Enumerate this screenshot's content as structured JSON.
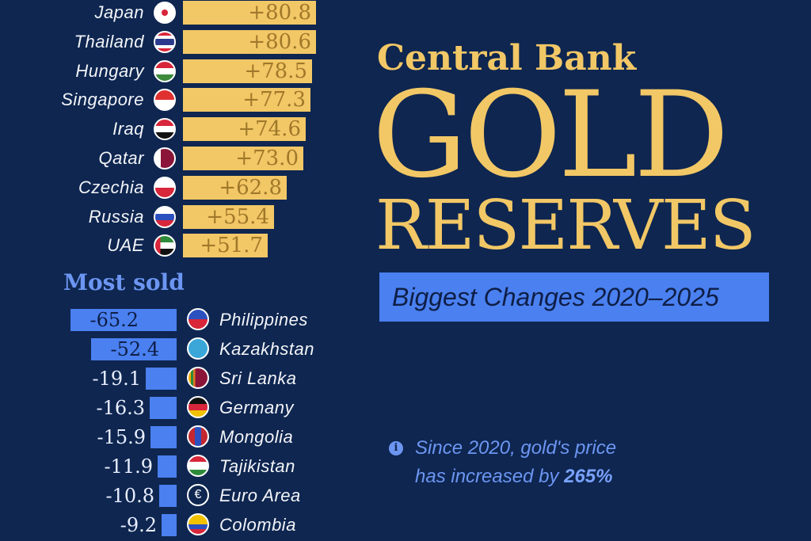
{
  "title": {
    "line1": "Central Bank",
    "line2": "GOLD",
    "line3": "RESERVES",
    "subtitle": "Biggest Changes 2020–2025"
  },
  "note": {
    "line1": "Since 2020, gold's price",
    "line2_prefix": "has increased by ",
    "line2_value": "265%"
  },
  "sold_section_title": "Most sold",
  "colors": {
    "background": "#0e2650",
    "gold": "#f2c766",
    "gold_text": "#a0782a",
    "blue": "#4a80f0",
    "blue_text": "#6d96f2"
  },
  "chart_data": [
    {
      "type": "bar",
      "orientation": "horizontal",
      "categories": [
        "Japan",
        "Thailand",
        "Hungary",
        "Singapore",
        "Iraq",
        "Qatar",
        "Czechia",
        "Russia",
        "UAE"
      ],
      "values": [
        80.8,
        80.6,
        78.5,
        77.3,
        74.6,
        73.0,
        62.8,
        55.4,
        51.7
      ],
      "labels": [
        "+80.8",
        "+80.6",
        "+78.5",
        "+77.3",
        "+74.6",
        "+73.0",
        "+62.8",
        "+55.4",
        "+51.7"
      ],
      "flag_icons": [
        "japan-flag-icon",
        "thailand-flag-icon",
        "hungary-flag-icon",
        "singapore-flag-icon",
        "iraq-flag-icon",
        "qatar-flag-icon",
        "czechia-flag-icon",
        "russia-flag-icon",
        "uae-flag-icon"
      ],
      "color": "#f2c766"
    },
    {
      "type": "bar",
      "orientation": "horizontal",
      "title": "Most sold",
      "categories": [
        "Philippines",
        "Kazakhstan",
        "Sri Lanka",
        "Germany",
        "Mongolia",
        "Tajikistan",
        "Euro Area",
        "Colombia"
      ],
      "values": [
        -65.2,
        -52.4,
        -19.1,
        -16.3,
        -15.9,
        -11.9,
        -10.8,
        -9.2
      ],
      "labels": [
        "-65.2",
        "-52.4",
        "-19.1",
        "-16.3",
        "-15.9",
        "-11.9",
        "-10.8",
        "-9.2"
      ],
      "flag_icons": [
        "philippines-flag-icon",
        "kazakhstan-flag-icon",
        "sri-lanka-flag-icon",
        "germany-flag-icon",
        "mongolia-flag-icon",
        "tajikistan-flag-icon",
        "euro-area-flag-icon",
        "colombia-flag-icon"
      ],
      "color": "#4a80f0"
    }
  ]
}
